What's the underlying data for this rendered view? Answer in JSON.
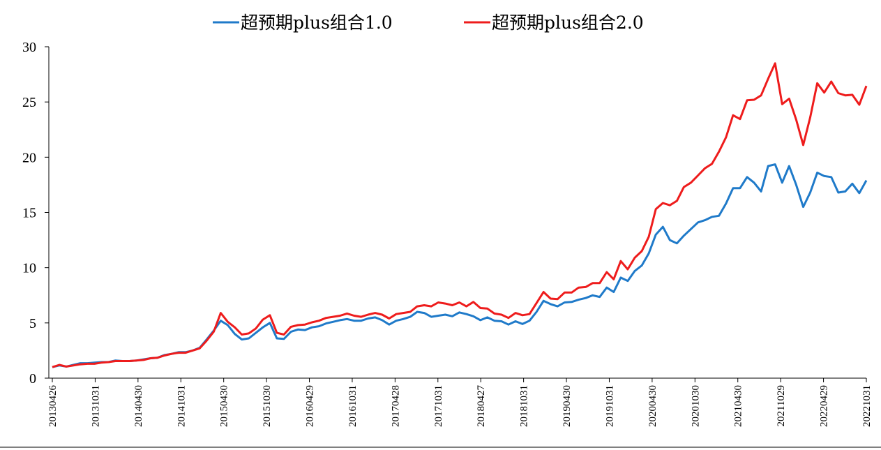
{
  "chart_data": {
    "type": "line",
    "title": "",
    "xlabel": "",
    "ylabel": "",
    "ylim": [
      0,
      30
    ],
    "yticks": [
      0,
      5,
      10,
      15,
      20,
      25,
      30
    ],
    "xtick_labels": [
      "20130426",
      "20131031",
      "20140430",
      "20141031",
      "20150430",
      "20151030",
      "20160429",
      "20161031",
      "20170428",
      "20171031",
      "20180427",
      "20181031",
      "20190430",
      "20191031",
      "20200430",
      "20201030",
      "20210430",
      "20211029",
      "20220429",
      "20221031"
    ],
    "legend_position": "top",
    "series": [
      {
        "name": "超预期plus组合1.0",
        "color": "#1f7ac9",
        "values": [
          1.0,
          1.15,
          1.05,
          1.2,
          1.35,
          1.35,
          1.4,
          1.45,
          1.45,
          1.6,
          1.55,
          1.55,
          1.6,
          1.7,
          1.8,
          1.85,
          2.1,
          2.2,
          2.35,
          2.35,
          2.5,
          2.75,
          3.5,
          4.3,
          5.2,
          4.8,
          4.0,
          3.5,
          3.6,
          4.1,
          4.6,
          5.0,
          3.6,
          3.55,
          4.2,
          4.4,
          4.35,
          4.6,
          4.7,
          4.95,
          5.1,
          5.25,
          5.35,
          5.2,
          5.2,
          5.4,
          5.5,
          5.25,
          4.85,
          5.2,
          5.35,
          5.55,
          6.0,
          5.9,
          5.55,
          5.65,
          5.75,
          5.6,
          5.95,
          5.8,
          5.6,
          5.25,
          5.5,
          5.2,
          5.15,
          4.85,
          5.15,
          4.9,
          5.2,
          6.0,
          7.0,
          6.7,
          6.5,
          6.85,
          6.9,
          7.1,
          7.25,
          7.5,
          7.35,
          8.2,
          7.8,
          9.1,
          8.8,
          9.7,
          10.2,
          11.3,
          13.0,
          13.7,
          12.5,
          12.2,
          12.9,
          13.5,
          14.1,
          14.3,
          14.6,
          14.7,
          15.8,
          17.2,
          17.2,
          18.2,
          17.7,
          16.9,
          19.2,
          19.35,
          17.7,
          19.2,
          17.5,
          15.5,
          16.8,
          18.6,
          18.3,
          18.2,
          16.8,
          16.9,
          17.6,
          16.75,
          17.9
        ]
      },
      {
        "name": "超预期plus组合2.0",
        "color": "#ee1c1c",
        "values": [
          1.0,
          1.2,
          1.05,
          1.15,
          1.25,
          1.3,
          1.3,
          1.4,
          1.45,
          1.55,
          1.55,
          1.55,
          1.6,
          1.65,
          1.8,
          1.85,
          2.05,
          2.2,
          2.3,
          2.3,
          2.5,
          2.7,
          3.4,
          4.2,
          5.9,
          5.1,
          4.6,
          3.95,
          4.05,
          4.5,
          5.3,
          5.7,
          4.1,
          3.95,
          4.65,
          4.8,
          4.85,
          5.05,
          5.2,
          5.45,
          5.55,
          5.65,
          5.85,
          5.65,
          5.55,
          5.75,
          5.9,
          5.75,
          5.4,
          5.8,
          5.9,
          6.0,
          6.5,
          6.6,
          6.5,
          6.85,
          6.75,
          6.6,
          6.85,
          6.5,
          6.9,
          6.35,
          6.3,
          5.85,
          5.75,
          5.45,
          5.9,
          5.7,
          5.8,
          6.8,
          7.8,
          7.2,
          7.15,
          7.75,
          7.75,
          8.2,
          8.25,
          8.6,
          8.6,
          9.6,
          8.95,
          10.6,
          9.85,
          10.9,
          11.5,
          12.8,
          15.3,
          15.85,
          15.65,
          16.05,
          17.3,
          17.7,
          18.35,
          19.0,
          19.4,
          20.5,
          21.8,
          23.8,
          23.45,
          25.15,
          25.2,
          25.6,
          27.1,
          28.5,
          24.8,
          25.3,
          23.4,
          21.1,
          23.6,
          26.7,
          25.85,
          26.85,
          25.8,
          25.6,
          25.65,
          24.75,
          26.45
        ]
      }
    ]
  }
}
